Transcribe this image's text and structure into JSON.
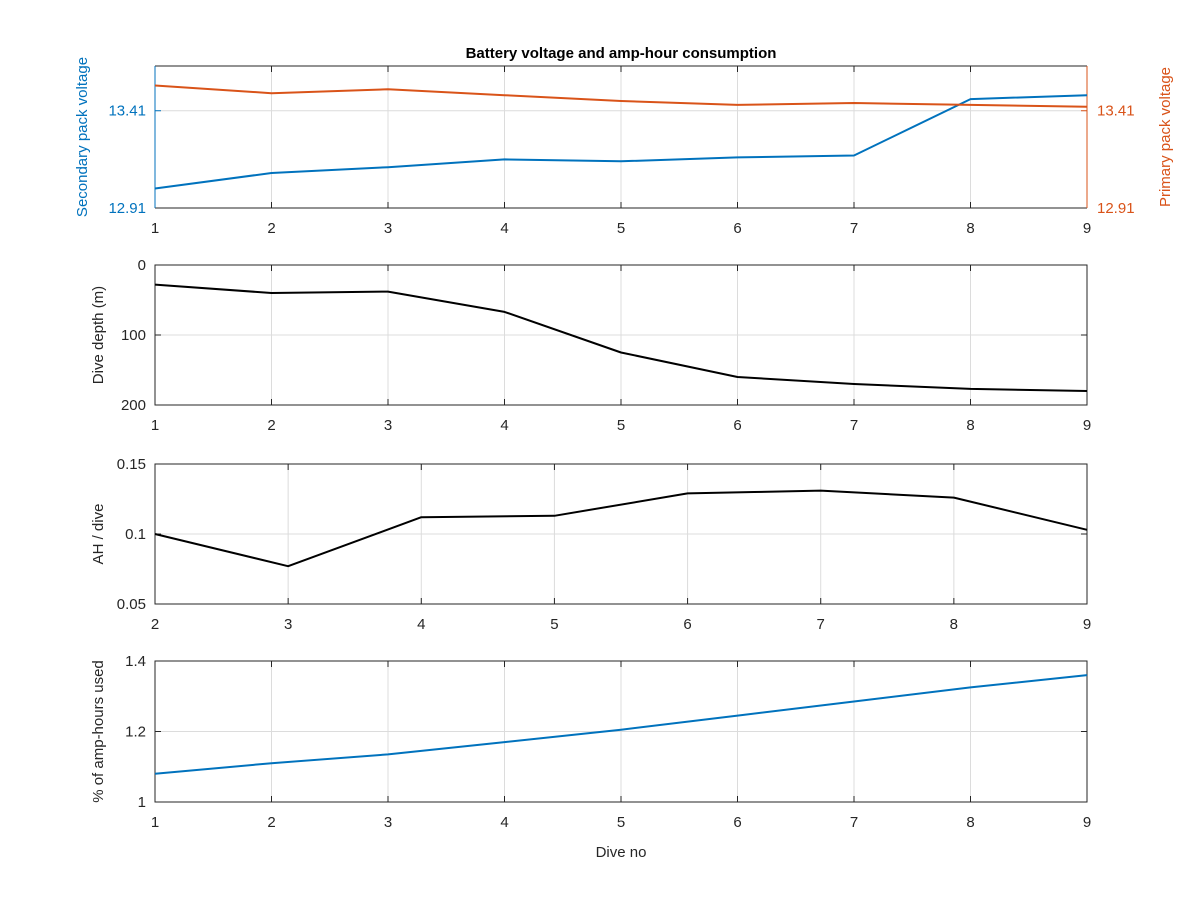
{
  "figure": {
    "title": "Battery voltage and amp-hour consumption",
    "xlabel": "Dive no"
  },
  "colors": {
    "secondary": "#0072BD",
    "primary": "#D95319",
    "depth": "#000000",
    "ah": "#000000",
    "percent": "#0072BD"
  },
  "chart_data": [
    {
      "type": "line",
      "ylabel_left": "Secondary pack voltage",
      "ylabel_right": "Primary pack voltage",
      "xlim": [
        1,
        9
      ],
      "ylim_left": [
        12.91,
        13.64
      ],
      "ylim_right": [
        12.91,
        13.64
      ],
      "xticks": [
        "1",
        "2",
        "3",
        "4",
        "5",
        "6",
        "7",
        "8",
        "9"
      ],
      "yticks_left": [
        "13.41",
        "12.91"
      ],
      "yticks_right": [
        "13.41",
        "12.91"
      ],
      "grid": true,
      "series": [
        {
          "axis": "left",
          "x": [
            1,
            2,
            3,
            4,
            5,
            6,
            7,
            8,
            9
          ],
          "values": [
            13.01,
            13.09,
            13.12,
            13.16,
            13.15,
            13.17,
            13.18,
            13.47,
            13.49
          ]
        },
        {
          "axis": "right",
          "x": [
            1,
            2,
            3,
            4,
            5,
            6,
            7,
            8,
            9
          ],
          "values": [
            13.54,
            13.5,
            13.52,
            13.49,
            13.46,
            13.44,
            13.45,
            13.44,
            13.43
          ]
        }
      ]
    },
    {
      "type": "line",
      "ylabel": "Dive depth (m)",
      "xlim": [
        1,
        9
      ],
      "ylim": [
        0,
        200
      ],
      "y_reversed": true,
      "xticks": [
        "1",
        "2",
        "3",
        "4",
        "5",
        "6",
        "7",
        "8",
        "9"
      ],
      "yticks": [
        "0",
        "100",
        "200"
      ],
      "grid": true,
      "series": [
        {
          "x": [
            1,
            2,
            3,
            4,
            5,
            6,
            7,
            8,
            9
          ],
          "values": [
            28,
            40,
            38,
            67,
            125,
            160,
            170,
            177,
            180
          ]
        }
      ]
    },
    {
      "type": "line",
      "ylabel": "AH / dive",
      "xlim": [
        2,
        9
      ],
      "ylim": [
        0.05,
        0.15
      ],
      "xticks": [
        "2",
        "3",
        "4",
        "5",
        "6",
        "7",
        "8",
        "9"
      ],
      "yticks": [
        "0.15",
        "0.1",
        "0.05"
      ],
      "grid": true,
      "series": [
        {
          "x": [
            2,
            3,
            4,
            5,
            6,
            6.5,
            7,
            8,
            9
          ],
          "values": [
            0.1,
            0.077,
            0.112,
            0.113,
            0.129,
            0.13,
            0.131,
            0.126,
            0.103
          ]
        }
      ]
    },
    {
      "type": "line",
      "ylabel": "% of amp-hours used",
      "xlim": [
        1,
        9
      ],
      "ylim": [
        1,
        1.4
      ],
      "xticks": [
        "1",
        "2",
        "3",
        "4",
        "5",
        "6",
        "7",
        "8",
        "9"
      ],
      "yticks": [
        "1.4",
        "1.2",
        "1"
      ],
      "grid": true,
      "series": [
        {
          "x": [
            1,
            2,
            3,
            4,
            5,
            6,
            7,
            8,
            9
          ],
          "values": [
            1.08,
            1.11,
            1.135,
            1.17,
            1.205,
            1.245,
            1.285,
            1.325,
            1.36
          ]
        }
      ]
    }
  ]
}
